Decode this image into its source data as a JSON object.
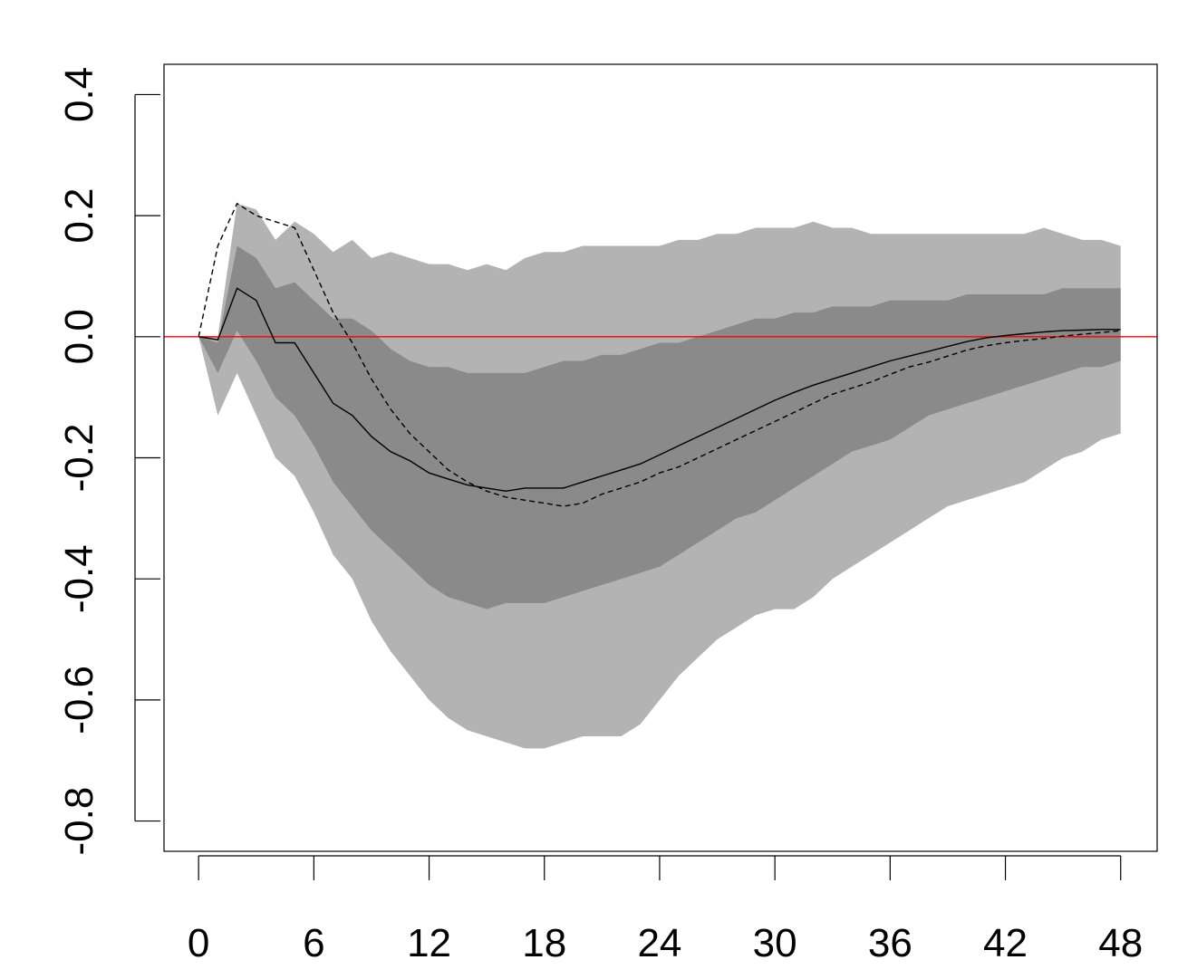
{
  "chart_data": {
    "type": "area",
    "title": "",
    "xlabel": "",
    "ylabel": "",
    "xlim": [
      -1.8,
      49.9
    ],
    "ylim": [
      -0.85,
      0.45
    ],
    "x_ticks": [
      0,
      6,
      12,
      18,
      24,
      30,
      36,
      42,
      48
    ],
    "y_ticks": [
      -0.8,
      -0.6,
      -0.4,
      -0.2,
      0.0,
      0.2,
      0.4
    ],
    "y_tick_labels": [
      "-0.8",
      "-0.6",
      "-0.4",
      "-0.2",
      "0.0",
      "0.2",
      "0.4"
    ],
    "grid": false,
    "legend": "none",
    "reference_line": {
      "y": 0.0,
      "color": "#ff0000"
    },
    "colors": {
      "outer_band": "#b3b3b3",
      "inner_band": "#8a8a8a",
      "median_line": "#000000",
      "dashed_line": "#000000"
    },
    "x": [
      0,
      1,
      2,
      3,
      4,
      5,
      6,
      7,
      8,
      9,
      10,
      11,
      12,
      13,
      14,
      15,
      16,
      17,
      18,
      19,
      20,
      21,
      22,
      23,
      24,
      25,
      26,
      27,
      28,
      29,
      30,
      31,
      32,
      33,
      34,
      35,
      36,
      37,
      38,
      39,
      40,
      41,
      42,
      43,
      44,
      45,
      46,
      47,
      48
    ],
    "outer_band": {
      "upper": [
        0.0,
        0.0,
        0.22,
        0.21,
        0.16,
        0.19,
        0.17,
        0.14,
        0.16,
        0.13,
        0.14,
        0.13,
        0.12,
        0.12,
        0.11,
        0.12,
        0.11,
        0.13,
        0.14,
        0.14,
        0.15,
        0.15,
        0.15,
        0.15,
        0.15,
        0.16,
        0.16,
        0.17,
        0.17,
        0.18,
        0.18,
        0.18,
        0.19,
        0.18,
        0.18,
        0.17,
        0.17,
        0.17,
        0.17,
        0.17,
        0.17,
        0.17,
        0.17,
        0.17,
        0.18,
        0.17,
        0.16,
        0.16,
        0.15
      ],
      "lower": [
        0.0,
        -0.13,
        -0.06,
        -0.13,
        -0.2,
        -0.23,
        -0.29,
        -0.36,
        -0.4,
        -0.47,
        -0.52,
        -0.56,
        -0.6,
        -0.63,
        -0.65,
        -0.66,
        -0.67,
        -0.68,
        -0.68,
        -0.67,
        -0.66,
        -0.66,
        -0.66,
        -0.64,
        -0.6,
        -0.56,
        -0.53,
        -0.5,
        -0.48,
        -0.46,
        -0.45,
        -0.45,
        -0.43,
        -0.4,
        -0.38,
        -0.36,
        -0.34,
        -0.32,
        -0.3,
        -0.28,
        -0.27,
        -0.26,
        -0.25,
        -0.24,
        -0.22,
        -0.2,
        -0.19,
        -0.17,
        -0.16
      ]
    },
    "inner_band": {
      "upper": [
        0.0,
        -0.01,
        0.15,
        0.13,
        0.08,
        0.09,
        0.06,
        0.03,
        0.03,
        0.01,
        -0.02,
        -0.04,
        -0.05,
        -0.05,
        -0.06,
        -0.06,
        -0.06,
        -0.06,
        -0.05,
        -0.04,
        -0.04,
        -0.03,
        -0.03,
        -0.02,
        -0.01,
        -0.01,
        0.0,
        0.01,
        0.02,
        0.03,
        0.03,
        0.04,
        0.04,
        0.05,
        0.05,
        0.05,
        0.06,
        0.06,
        0.06,
        0.06,
        0.07,
        0.07,
        0.07,
        0.07,
        0.07,
        0.08,
        0.08,
        0.08,
        0.08
      ],
      "lower": [
        0.0,
        -0.06,
        0.01,
        -0.04,
        -0.1,
        -0.13,
        -0.18,
        -0.24,
        -0.28,
        -0.32,
        -0.35,
        -0.38,
        -0.41,
        -0.43,
        -0.44,
        -0.45,
        -0.44,
        -0.44,
        -0.44,
        -0.43,
        -0.42,
        -0.41,
        -0.4,
        -0.39,
        -0.38,
        -0.36,
        -0.34,
        -0.32,
        -0.3,
        -0.29,
        -0.27,
        -0.25,
        -0.23,
        -0.21,
        -0.19,
        -0.18,
        -0.17,
        -0.15,
        -0.13,
        -0.12,
        -0.11,
        -0.1,
        -0.09,
        -0.08,
        -0.07,
        -0.06,
        -0.05,
        -0.05,
        -0.04
      ]
    },
    "series": [
      {
        "style": "solid",
        "values": [
          0.0,
          -0.005,
          0.08,
          0.06,
          -0.01,
          -0.01,
          -0.06,
          -0.11,
          -0.13,
          -0.165,
          -0.19,
          -0.205,
          -0.225,
          -0.235,
          -0.245,
          -0.25,
          -0.255,
          -0.25,
          -0.25,
          -0.25,
          -0.24,
          -0.23,
          -0.22,
          -0.21,
          -0.195,
          -0.18,
          -0.165,
          -0.15,
          -0.135,
          -0.12,
          -0.105,
          -0.092,
          -0.08,
          -0.07,
          -0.06,
          -0.05,
          -0.04,
          -0.032,
          -0.024,
          -0.016,
          -0.008,
          -0.002,
          0.002,
          0.005,
          0.008,
          0.01,
          0.011,
          0.012,
          0.012
        ]
      },
      {
        "style": "dashed",
        "values": [
          0.0,
          0.15,
          0.22,
          0.2,
          0.19,
          0.18,
          0.11,
          0.04,
          -0.01,
          -0.07,
          -0.12,
          -0.16,
          -0.19,
          -0.22,
          -0.24,
          -0.255,
          -0.265,
          -0.27,
          -0.275,
          -0.28,
          -0.275,
          -0.26,
          -0.25,
          -0.24,
          -0.225,
          -0.215,
          -0.2,
          -0.185,
          -0.17,
          -0.155,
          -0.14,
          -0.125,
          -0.11,
          -0.095,
          -0.085,
          -0.075,
          -0.062,
          -0.05,
          -0.042,
          -0.032,
          -0.022,
          -0.015,
          -0.01,
          -0.006,
          -0.003,
          0.001,
          0.004,
          0.007,
          0.01
        ]
      }
    ]
  }
}
